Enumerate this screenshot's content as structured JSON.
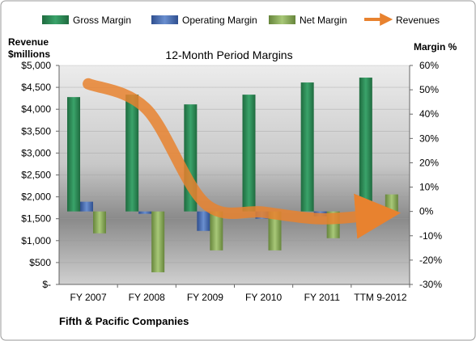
{
  "chart_data": {
    "type": "bar",
    "title": "12-Month Period Margins",
    "left_axis_title_line1": "Revenue",
    "left_axis_title_line2": "$millions",
    "right_axis_title": "Margin %",
    "company": "Fifth & Pacific Companies",
    "categories": [
      "FY 2007",
      "FY 2008",
      "FY 2009",
      "FY 2010",
      "FY 2011",
      "TTM 9-2012"
    ],
    "left_ticks": [
      "$5,000",
      "$4,500",
      "$4,000",
      "$3,500",
      "$3,000",
      "$2,500",
      "$2,000",
      "$1,500",
      "$1,000",
      "$500",
      "$-"
    ],
    "right_ticks": [
      "60%",
      "50%",
      "40%",
      "30%",
      "20%",
      "10%",
      "0%",
      "-10%",
      "-20%",
      "-30%"
    ],
    "ylim_left": [
      0,
      5000
    ],
    "ylim_right": [
      -30,
      60
    ],
    "series": [
      {
        "name": "Gross Margin",
        "axis": "right",
        "color": "#2e8b57",
        "values": [
          47,
          48,
          44,
          48,
          53,
          55
        ]
      },
      {
        "name": "Operating Margin",
        "axis": "right",
        "color": "#4a72b8",
        "values": [
          4,
          -1,
          -8,
          -3,
          -2,
          -2
        ]
      },
      {
        "name": "Net Margin",
        "axis": "right",
        "color": "#8db360",
        "values": [
          -9,
          -25,
          -16,
          -16,
          -11,
          7
        ]
      }
    ],
    "revenue": {
      "name": "Revenues",
      "axis": "left",
      "color": "#e8822f",
      "values": [
        4580,
        4000,
        1850,
        1650,
        1500,
        1600
      ]
    },
    "legend_position": "top"
  }
}
